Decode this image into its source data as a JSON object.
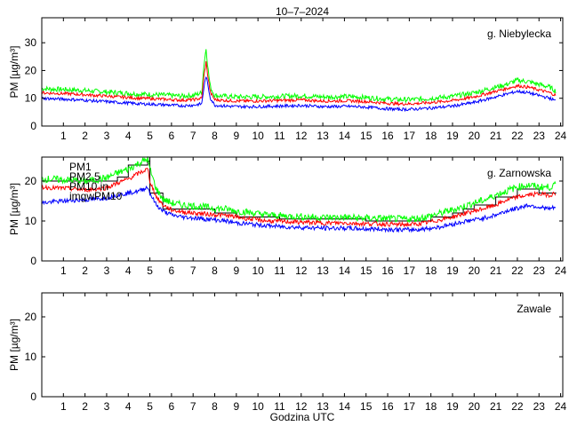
{
  "title": "10–7–2024",
  "xlabel": "Godzina UTC",
  "colors": {
    "PM1": "#0000ff",
    "PM2.5": "#ff0000",
    "PM10": "#00ff00",
    "PM10_in": "#000000",
    "imgw": "#ff00ff"
  },
  "chart_data": [
    {
      "type": "line",
      "title": "g. Niebylecka",
      "ylabel": "PM [µg/m³]",
      "xlim": [
        0,
        24.1
      ],
      "ylim": [
        0,
        39
      ],
      "x_ticks": [
        1,
        2,
        3,
        4,
        5,
        6,
        7,
        8,
        9,
        10,
        11,
        12,
        13,
        14,
        15,
        16,
        17,
        18,
        19,
        20,
        21,
        22,
        23,
        24
      ],
      "y_ticks": [
        0,
        10,
        20,
        30
      ],
      "x": [
        0,
        0.5,
        1,
        1.5,
        2,
        2.5,
        3,
        3.5,
        4,
        4.5,
        5,
        5.5,
        6,
        6.5,
        7,
        7.4,
        7.5,
        7.6,
        7.7,
        7.8,
        8,
        8.5,
        9,
        9.5,
        10,
        10.5,
        11,
        11.5,
        12,
        12.5,
        13,
        13.5,
        14,
        14.5,
        15,
        15.5,
        16,
        16.5,
        17,
        17.5,
        18,
        18.5,
        19,
        19.5,
        20,
        20.5,
        21,
        21.5,
        22,
        22.5,
        23,
        23.5,
        23.8
      ],
      "series": [
        {
          "name": "PM1",
          "values": [
            10,
            9.8,
            9.7,
            9.5,
            9.3,
            9,
            8.8,
            8.5,
            8.3,
            8,
            7.9,
            7.7,
            7.5,
            7.3,
            7.5,
            8,
            14,
            18,
            14,
            10,
            7.5,
            7.2,
            7,
            7,
            7,
            7.1,
            7.2,
            7.3,
            7.4,
            7.2,
            7,
            7,
            7.1,
            7,
            6.8,
            6.5,
            6.2,
            6,
            6,
            6.2,
            6.5,
            6.8,
            7.2,
            7.8,
            8.5,
            9.5,
            10.5,
            11.5,
            12.5,
            12,
            11,
            10,
            9
          ]
        },
        {
          "name": "PM2.5",
          "values": [
            12,
            11.8,
            11.7,
            11.5,
            11.3,
            11,
            10.8,
            10.5,
            10.3,
            10,
            9.9,
            9.7,
            9.5,
            9.3,
            9.5,
            10,
            18,
            23,
            17,
            12,
            9.5,
            9.2,
            9,
            9,
            9,
            9.1,
            9.2,
            9.3,
            9.4,
            9.2,
            9,
            9,
            9.1,
            9,
            8.8,
            8.5,
            8.2,
            8,
            8,
            8.2,
            8.5,
            8.8,
            9.2,
            9.8,
            10.5,
            11.5,
            12.5,
            13.5,
            14.5,
            14,
            13,
            12,
            11
          ]
        },
        {
          "name": "PM10",
          "values": [
            13.5,
            13.3,
            13.2,
            13,
            12.8,
            12.5,
            12.3,
            12,
            11.8,
            11.5,
            11.4,
            11.2,
            11,
            10.8,
            11,
            12,
            22,
            28,
            20,
            14,
            11,
            10.7,
            10.5,
            10.5,
            10.5,
            10.6,
            10.7,
            10.8,
            10.9,
            10.7,
            10.5,
            10.5,
            10.6,
            10.5,
            10.3,
            10,
            9.7,
            9.5,
            9.5,
            9.7,
            10,
            10.3,
            10.7,
            11.3,
            12,
            13,
            14,
            15,
            16.5,
            16,
            15,
            14,
            12.5
          ]
        }
      ]
    },
    {
      "type": "line",
      "title": "g. Zarnowska",
      "ylabel": "PM [µg/m³]",
      "xlim": [
        0,
        24.1
      ],
      "ylim": [
        0,
        26
      ],
      "x_ticks": [
        1,
        2,
        3,
        4,
        5,
        6,
        7,
        8,
        9,
        10,
        11,
        12,
        13,
        14,
        15,
        16,
        17,
        18,
        19,
        20,
        21,
        22,
        23,
        24
      ],
      "y_ticks": [
        0,
        10,
        20
      ],
      "legend": [
        "PM1",
        "PM2.5",
        "PM10 in",
        "imgwPM10"
      ],
      "x": [
        0,
        0.5,
        1,
        1.5,
        2,
        2.5,
        3,
        3.5,
        4,
        4.5,
        4.9,
        5,
        5.3,
        5.6,
        6,
        6.5,
        7,
        7.5,
        8,
        8.5,
        9,
        9.5,
        10,
        10.5,
        11,
        11.5,
        12,
        12.5,
        13,
        13.5,
        14,
        14.5,
        15,
        15.5,
        16,
        16.5,
        17,
        17.5,
        18,
        18.5,
        19,
        19.5,
        20,
        20.5,
        21,
        21.5,
        22,
        22.5,
        23,
        23.5,
        23.8
      ],
      "series": [
        {
          "name": "PM1",
          "values": [
            14.5,
            14.8,
            15,
            15.2,
            15.3,
            15.5,
            15.8,
            16.5,
            17,
            17.5,
            18.5,
            17,
            14,
            12.5,
            11.5,
            11,
            10.8,
            10.5,
            10.3,
            10,
            9.5,
            9.3,
            9,
            8.8,
            8.6,
            8.5,
            8.4,
            8.3,
            8.2,
            8.2,
            8.2,
            8.1,
            8,
            8,
            7.9,
            7.8,
            7.8,
            7.9,
            8.2,
            8.6,
            9.2,
            9.8,
            10.3,
            10.8,
            11.5,
            12.5,
            13.2,
            14,
            13.5,
            13,
            13.5
          ]
        },
        {
          "name": "PM2.5",
          "values": [
            18.5,
            18.3,
            18.2,
            18,
            17.8,
            18,
            18.3,
            19.5,
            20.5,
            22,
            23,
            20,
            16,
            14,
            12.8,
            12.3,
            12,
            11.8,
            11.6,
            11.4,
            11,
            10.6,
            10.3,
            10,
            9.9,
            9.8,
            9.7,
            9.6,
            9.5,
            9.5,
            9.5,
            9.4,
            9.3,
            9.3,
            9.2,
            9.1,
            9.1,
            9.3,
            9.8,
            10.4,
            11,
            11.8,
            12.5,
            13.2,
            14,
            15.2,
            16,
            16.5,
            16.8,
            16.5,
            17
          ]
        },
        {
          "name": "PM10",
          "values": [
            20.5,
            20.5,
            20.3,
            20.2,
            20,
            20.3,
            20.8,
            22,
            23,
            24.5,
            25.5,
            23,
            18,
            15.5,
            14.5,
            14,
            13.8,
            13.5,
            13.2,
            13,
            12.5,
            12.2,
            11.8,
            11.5,
            11.3,
            11.2,
            11.1,
            11,
            10.9,
            10.9,
            10.9,
            10.8,
            10.7,
            10.7,
            10.6,
            10.5,
            10.5,
            10.8,
            11.3,
            12,
            12.8,
            13.6,
            14.5,
            15.3,
            16.5,
            17.5,
            18.5,
            19,
            18.5,
            18.5,
            19
          ]
        },
        {
          "name": "PM10 in",
          "step": true,
          "values": [
            20,
            20,
            20,
            20,
            20,
            20,
            20,
            21,
            24,
            24,
            25,
            17,
            17,
            13,
            13,
            13,
            13,
            13,
            12,
            12,
            11,
            11,
            11,
            11,
            10.5,
            10.5,
            10.5,
            10.5,
            10.5,
            10.5,
            10.5,
            10.5,
            10,
            10,
            10,
            10,
            10,
            10,
            11,
            11,
            12,
            13,
            14,
            14,
            16,
            16,
            18,
            18,
            17,
            17,
            17
          ]
        }
      ]
    },
    {
      "type": "line",
      "title": "Zawale",
      "ylabel": "PM [µg/m³]",
      "xlim": [
        0,
        24.1
      ],
      "ylim": [
        0,
        26
      ],
      "x_ticks": [
        1,
        2,
        3,
        4,
        5,
        6,
        7,
        8,
        9,
        10,
        11,
        12,
        13,
        14,
        15,
        16,
        17,
        18,
        19,
        20,
        21,
        22,
        23,
        24
      ],
      "y_ticks": [
        0,
        10,
        20
      ],
      "series": []
    }
  ]
}
